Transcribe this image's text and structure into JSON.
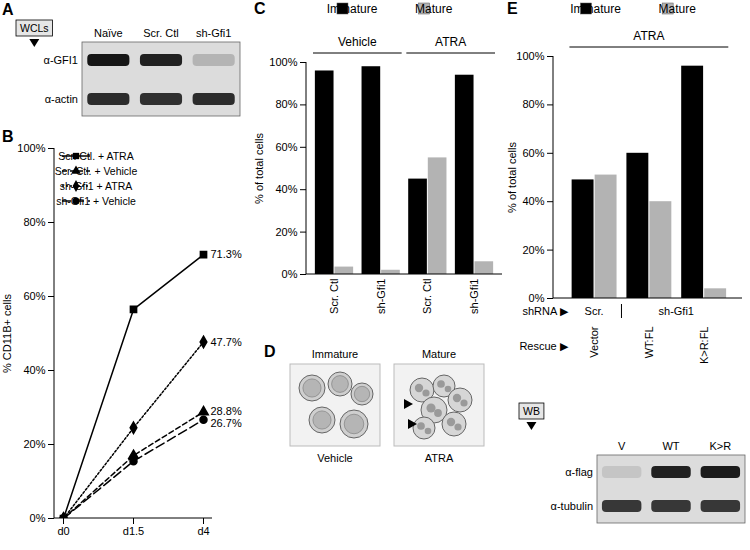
{
  "chart_data": [
    {
      "panel": "B",
      "type": "line",
      "categories": [
        "d0",
        "d1.5",
        "d4"
      ],
      "ylabel": "% CD11B+ cells",
      "ylim": [
        0,
        100
      ],
      "yticks": [
        {
          "value": 0,
          "label": "0%"
        },
        {
          "value": 20,
          "label": "20%"
        },
        {
          "value": 40,
          "label": "40%"
        },
        {
          "value": 60,
          "label": "60%"
        },
        {
          "value": 80,
          "label": "80%"
        },
        {
          "value": 100,
          "label": "100%"
        }
      ],
      "legend": "top-left",
      "series": [
        {
          "name": "Scr. Ctl. + ATRA",
          "color": "#000000",
          "marker": "square",
          "line_style": "solid",
          "values": [
            0,
            56.5,
            71.3
          ]
        },
        {
          "name": "Scr. Ctl. + Vehicle",
          "color": "#000000",
          "marker": "triangle",
          "line_style": "dashed",
          "values": [
            0,
            17,
            28.8
          ]
        },
        {
          "name": "sh-Gfi1 + ATRA",
          "color": "#000000",
          "marker": "diamond",
          "line_style": "dotted",
          "values": [
            0,
            24.5,
            47.7
          ]
        },
        {
          "name": "sh-Gfi1 + Vehicle",
          "color": "#000000",
          "marker": "circle",
          "line_style": "longdash",
          "values": [
            0,
            15.5,
            26.7
          ]
        }
      ],
      "annotations": [
        {
          "x": "d4",
          "y": 71.3,
          "text": "71.3%"
        },
        {
          "x": "d4",
          "y": 47.7,
          "text": "47.7%"
        },
        {
          "x": "d4",
          "y": 28.8,
          "text": "28.8%"
        },
        {
          "x": "d4",
          "y": 26.7,
          "text": "26.7%"
        }
      ]
    },
    {
      "panel": "C",
      "type": "bar",
      "group_labels": [
        "Vehicle",
        "Vehicle",
        "ATRA",
        "ATRA"
      ],
      "categories": [
        "Scr. Ctl",
        "sh-Gfi1",
        "Scr. Ctl",
        "sh-Gfi1"
      ],
      "ylabel": "% of total cells",
      "ylim": [
        0,
        100
      ],
      "yticks": [
        {
          "value": 0,
          "label": "0%"
        },
        {
          "value": 20,
          "label": "20%"
        },
        {
          "value": 40,
          "label": "40%"
        },
        {
          "value": 60,
          "label": "60%"
        },
        {
          "value": 80,
          "label": "80%"
        },
        {
          "value": 100,
          "label": "100%"
        }
      ],
      "legend": "top",
      "series": [
        {
          "name": "Immature",
          "color": "#000000",
          "values": [
            96,
            98,
            45,
            94
          ]
        },
        {
          "name": "Mature",
          "color": "#b3b3b3",
          "values": [
            3.5,
            2,
            55,
            6
          ]
        }
      ]
    },
    {
      "panel": "E",
      "type": "bar",
      "header": "ATRA",
      "shrna_title": "shRNA ▶",
      "shrna": [
        "Scr.",
        "sh-Gfi1",
        "sh-Gfi1"
      ],
      "category_title": "Rescue ▶",
      "categories": [
        "Vector",
        "WT:FL",
        "K>R:FL"
      ],
      "ylabel": "% of total cells",
      "ylim": [
        0,
        100
      ],
      "yticks": [
        {
          "value": 0,
          "label": "0%"
        },
        {
          "value": 20,
          "label": "20%"
        },
        {
          "value": 40,
          "label": "40%"
        },
        {
          "value": 60,
          "label": "60%"
        },
        {
          "value": 80,
          "label": "80%"
        },
        {
          "value": 100,
          "label": "100%"
        }
      ],
      "legend": "top",
      "series": [
        {
          "name": "Immature",
          "color": "#000000",
          "values": [
            49,
            60,
            96
          ]
        },
        {
          "name": "Mature",
          "color": "#b3b3b3",
          "values": [
            51,
            40,
            4
          ]
        }
      ]
    }
  ],
  "panel_a": {
    "label": "A",
    "tag": "WCLs",
    "lanes": [
      "Naïve",
      "Scr. Ctl",
      "sh-Gfi1"
    ],
    "rows": [
      "α-GFI1",
      "α-actin"
    ]
  },
  "panel_d": {
    "label": "D",
    "images": [
      {
        "top": "Immature",
        "bottom": "Vehicle"
      },
      {
        "top": "Mature",
        "bottom": "ATRA"
      }
    ]
  },
  "panel_e_blot": {
    "tag": "WB",
    "lanes": [
      "V",
      "WT",
      "K>R"
    ],
    "rows": [
      "α-flag",
      "α-tubulin"
    ]
  }
}
